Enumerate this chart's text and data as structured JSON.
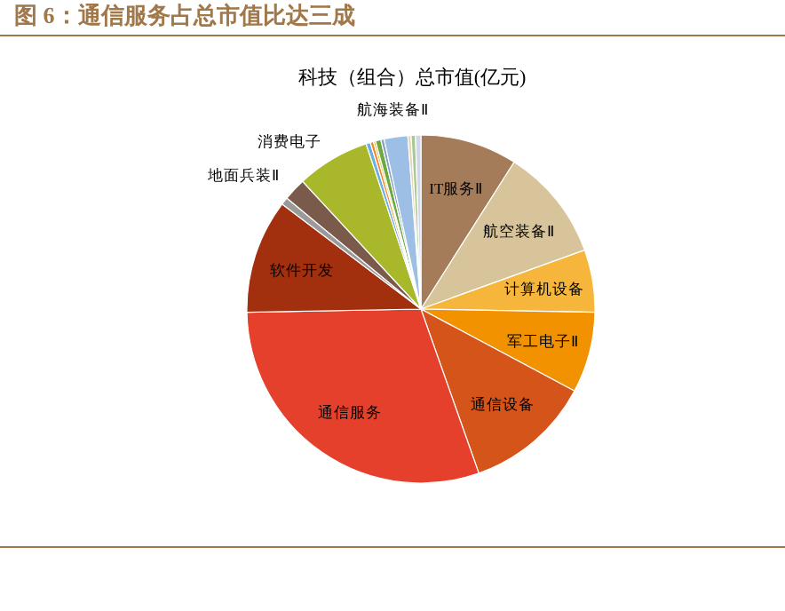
{
  "chart_data": {
    "type": "pie",
    "title": "图 6：通信服务占总市值比达三成",
    "subtitle": "科技（组合）总市值(亿元)",
    "categories": [
      "IT服务Ⅱ",
      "航空装备Ⅱ",
      "计算机设备",
      "军工电子Ⅱ",
      "通信设备",
      "通信服务",
      "软件开发",
      null,
      "地面兵装Ⅱ",
      "消费电子",
      null,
      null,
      null,
      null,
      null,
      "航海装备Ⅱ",
      null,
      null,
      null
    ],
    "values": [
      9.0,
      10.5,
      5.8,
      7.5,
      11.8,
      30.1,
      10.6,
      0.7,
      2.1,
      6.8,
      0.4,
      0.3,
      0.2,
      0.5,
      0.3,
      2.2,
      0.3,
      0.4,
      0.5
    ],
    "colors": [
      "#a57c5a",
      "#d8c49a",
      "#f5b63b",
      "#f39200",
      "#d4541a",
      "#e5402c",
      "#a2300f",
      "#9a9a9a",
      "#7a5a4a",
      "#a8b82a",
      "#6ab0e0",
      "#f08a30",
      "#f5c040",
      "#6aaa40",
      "#8aa0c0",
      "#9dbfe6",
      "#e8d8b0",
      "#a8c898",
      "#d0d8e8"
    ],
    "legend": false
  }
}
